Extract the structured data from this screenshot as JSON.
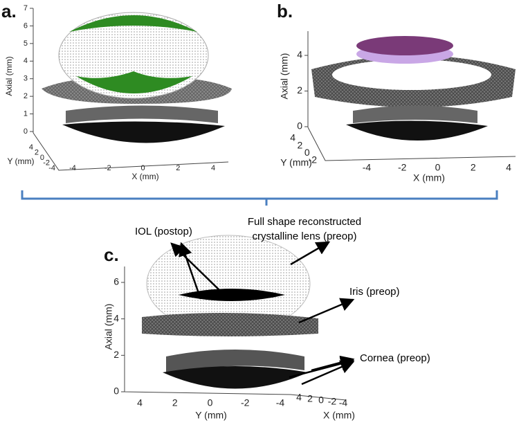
{
  "panels": [
    {
      "label": "a.",
      "axes": {
        "z": {
          "label": "Axial (mm)",
          "ticks": [
            0,
            1,
            2,
            3,
            4,
            5,
            6,
            7
          ]
        },
        "y": {
          "label": "Y (mm)",
          "ticks": [
            4,
            2,
            0,
            -2,
            -4
          ]
        },
        "x": {
          "label": "X (mm)",
          "ticks": [
            -4,
            -2,
            0,
            2,
            4
          ]
        }
      }
    },
    {
      "label": "b.",
      "axes": {
        "z": {
          "label": "Axial (mm)",
          "ticks": [
            0,
            2,
            4
          ]
        },
        "y": {
          "label": "Y (mm)",
          "ticks": [
            4,
            2,
            0,
            -2
          ]
        },
        "x": {
          "label": "X (mm)",
          "ticks": [
            -4,
            -2,
            0,
            2,
            4
          ]
        }
      }
    },
    {
      "label": "c.",
      "axes": {
        "z": {
          "label": "Axial (mm)",
          "ticks": [
            0,
            2,
            4,
            6
          ]
        },
        "y": {
          "label": "Y (mm)",
          "ticks": [
            4,
            2,
            0,
            -2,
            -4
          ]
        },
        "x": {
          "label": "X (mm)",
          "ticks": [
            4,
            2,
            0,
            -2,
            -4
          ]
        }
      },
      "annotations": {
        "iol": "IOL (postop)",
        "lens": [
          "Full shape reconstructed",
          "crystalline lens (preop)"
        ],
        "iris": "Iris (preop)",
        "cornea": "Cornea (preop)"
      }
    }
  ]
}
